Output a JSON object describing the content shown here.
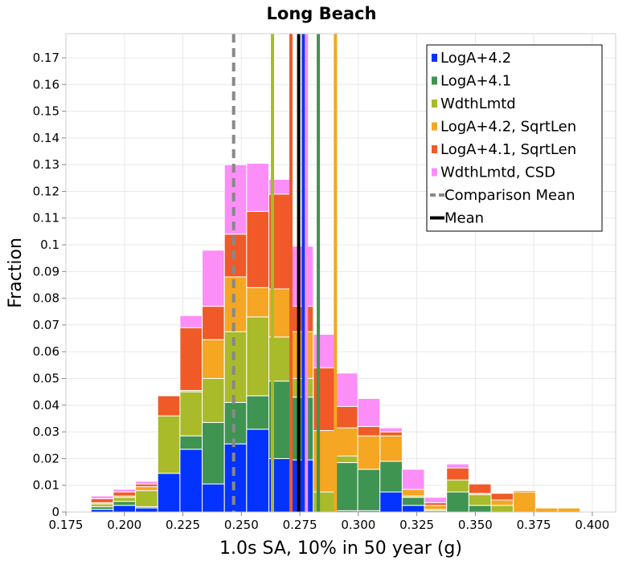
{
  "chart_data": {
    "type": "bar",
    "title": "Long Beach",
    "xlabel": "1.0s SA, 10% in 50 year (g)",
    "ylabel": "Fraction",
    "xlim": [
      0.175,
      0.41
    ],
    "ylim": [
      0,
      0.179
    ],
    "x_ticks": [
      0.175,
      0.2,
      0.225,
      0.25,
      0.275,
      0.3,
      0.325,
      0.35,
      0.375,
      0.4
    ],
    "x_tick_labels": [
      "0.175",
      "0.200",
      "0.225",
      "0.250",
      "0.275",
      "0.300",
      "0.325",
      "0.350",
      "0.375",
      "0.400"
    ],
    "y_ticks": [
      0,
      0.01,
      0.02,
      0.03,
      0.04,
      0.05,
      0.06,
      0.07,
      0.08,
      0.09,
      0.1,
      0.11,
      0.12,
      0.13,
      0.14,
      0.15,
      0.16,
      0.17
    ],
    "y_tick_labels": [
      "0",
      "0.01",
      "0.02",
      "0.03",
      "0.04",
      "0.05",
      "0.06",
      "0.07",
      "0.08",
      "0.09",
      "0.1",
      "0.11",
      "0.12",
      "0.13",
      "0.14",
      "0.15",
      "0.16",
      "0.17"
    ],
    "grid": true,
    "stacked": true,
    "bin_width": 0.0095,
    "bin_centers": [
      0.1905,
      0.2,
      0.2095,
      0.219,
      0.2285,
      0.238,
      0.2475,
      0.257,
      0.2665,
      0.276,
      0.2855,
      0.295,
      0.3045,
      0.314,
      0.3235,
      0.333,
      0.3425,
      0.352,
      0.3615,
      0.371,
      0.3805,
      0.39,
      0.3995
    ],
    "series": [
      {
        "name": "LogA+4.2",
        "color": "#0433ff",
        "values": [
          0.001,
          0.0025,
          0.0015,
          0.0145,
          0.0235,
          0.0105,
          0.0255,
          0.031,
          0.02,
          0.0195,
          0,
          0.0005,
          0.0005,
          0.0075,
          0.0025,
          0,
          0,
          0,
          0,
          0,
          0,
          0,
          0
        ]
      },
      {
        "name": "LogA+4.1",
        "color": "#3f9451",
        "values": [
          0.001,
          0.0015,
          0.0005,
          0,
          0.005,
          0.023,
          0.0155,
          0.0125,
          0.029,
          0.0235,
          0,
          0.018,
          0.0155,
          0.0115,
          0.003,
          0.0005,
          0.0075,
          0.0025,
          0,
          0,
          0,
          0,
          0
        ]
      },
      {
        "name": "WdthLmtd",
        "color": "#a9bb2a",
        "values": [
          0.001,
          0.0015,
          0.006,
          0.0215,
          0.0165,
          0.0165,
          0.0265,
          0.0295,
          0.0165,
          0.007,
          0.0075,
          0.0025,
          0,
          0,
          0.0005,
          0.0005,
          0.0045,
          0.004,
          0.0025,
          0,
          0,
          0,
          0
        ]
      },
      {
        "name": "LogA+4.2, SqrtLen",
        "color": "#f5a623",
        "values": [
          0.0005,
          0.0005,
          0.0015,
          0,
          0.0005,
          0.0145,
          0.0205,
          0.011,
          0.018,
          0.0175,
          0.023,
          0.0105,
          0.0125,
          0.0095,
          0.0025,
          0.0015,
          0,
          0.0005,
          0.002,
          0.0075,
          0.0015,
          0.0015,
          0
        ]
      },
      {
        "name": "LogA+4.1, SqrtLen",
        "color": "#f05a28",
        "values": [
          0.0015,
          0.0015,
          0.001,
          0.0075,
          0.0235,
          0.0125,
          0.016,
          0.0285,
          0.0355,
          0.0095,
          0.0235,
          0.008,
          0.0035,
          0.0015,
          0,
          0.001,
          0.0045,
          0.0035,
          0.0025,
          0.0005,
          0,
          0,
          0
        ]
      },
      {
        "name": "WdthLmtd, CSD",
        "color": "#fc8ef8",
        "values": [
          0.001,
          0.001,
          0.001,
          0,
          0.0045,
          0.021,
          0.026,
          0.018,
          0.0055,
          0.0225,
          0.0125,
          0.0125,
          0.0105,
          0.0015,
          0.0075,
          0.002,
          0.0015,
          0,
          0,
          0,
          0,
          0,
          0
        ]
      }
    ],
    "vertical_lines": [
      {
        "name": "Comparison Mean",
        "x": 0.2467,
        "color": "#888888",
        "style": "dashed",
        "in_legend": true
      },
      {
        "name": "Mean",
        "x": 0.2745,
        "color": "#000000",
        "style": "solid",
        "in_legend": true
      },
      {
        "name": "WdthLmtd",
        "x": 0.2633,
        "color": "#a9bb2a",
        "style": "solid",
        "in_legend": false
      },
      {
        "name": "LogA+4.1, SqrtLen",
        "x": 0.2712,
        "color": "#f05a28",
        "style": "solid",
        "in_legend": false
      },
      {
        "name": "LogA+4.2",
        "x": 0.2765,
        "color": "#0433ff",
        "style": "solid",
        "in_legend": false
      },
      {
        "name": "WdthLmtd, CSD",
        "x": 0.2778,
        "color": "#fc8ef8",
        "style": "solid",
        "in_legend": false
      },
      {
        "name": "LogA+4.1",
        "x": 0.2829,
        "color": "#3f9451",
        "style": "solid",
        "in_legend": false
      },
      {
        "name": "LogA+4.2, SqrtLen",
        "x": 0.2902,
        "color": "#f5a623",
        "style": "solid",
        "in_legend": false
      }
    ],
    "legend": {
      "position": "top-right",
      "entries": [
        "LogA+4.2",
        "LogA+4.1",
        "WdthLmtd",
        "LogA+4.2, SqrtLen",
        "LogA+4.1, SqrtLen",
        "WdthLmtd, CSD",
        "Comparison Mean",
        "Mean"
      ]
    }
  }
}
